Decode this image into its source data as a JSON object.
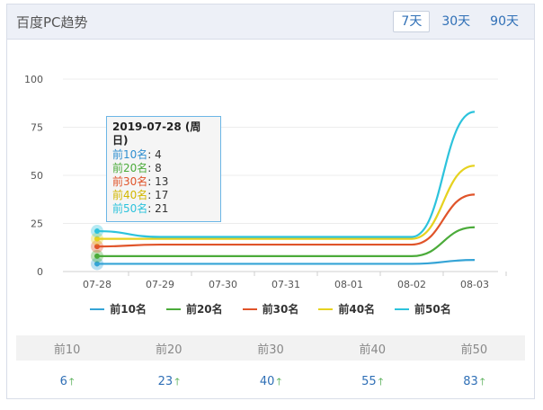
{
  "header": {
    "title": "百度PC趋势",
    "tabs": [
      {
        "label": "7天",
        "active": true
      },
      {
        "label": "30天",
        "active": false
      },
      {
        "label": "90天",
        "active": false
      }
    ]
  },
  "chart_data": {
    "type": "line",
    "categories": [
      "07-28",
      "07-29",
      "07-30",
      "07-31",
      "08-01",
      "08-02",
      "08-03"
    ],
    "yticks": [
      0,
      25,
      50,
      75,
      100
    ],
    "ylim": [
      0,
      100
    ],
    "grid": true,
    "legend_position": "bottom",
    "series": [
      {
        "name": "前10名",
        "color": "#35a4d6",
        "values": [
          4,
          4,
          4,
          4,
          4,
          4,
          6
        ]
      },
      {
        "name": "前20名",
        "color": "#4bab3a",
        "values": [
          8,
          8,
          8,
          8,
          8,
          8,
          23
        ]
      },
      {
        "name": "前30名",
        "color": "#e0542a",
        "values": [
          13,
          14,
          14,
          14,
          14,
          14,
          40
        ]
      },
      {
        "name": "前40名",
        "color": "#e6d21f",
        "values": [
          17,
          17,
          17,
          17,
          17,
          17,
          55
        ]
      },
      {
        "name": "前50名",
        "color": "#2dc3dc",
        "values": [
          21,
          18,
          18,
          18,
          18,
          18,
          83
        ]
      }
    ]
  },
  "tooltip": {
    "title": "2019-07-28 (周日)",
    "rows": [
      {
        "label": "前10名",
        "value": "4",
        "color": "#2f8fd0"
      },
      {
        "label": "前20名",
        "value": "8",
        "color": "#4bab3a"
      },
      {
        "label": "前30名",
        "value": "13",
        "color": "#e0542a"
      },
      {
        "label": "前40名",
        "value": "17",
        "color": "#d2b700"
      },
      {
        "label": "前50名",
        "value": "21",
        "color": "#2dc3dc"
      }
    ]
  },
  "stats": {
    "headers": [
      "前10",
      "前20",
      "前30",
      "前40",
      "前50"
    ],
    "values": [
      "6",
      "23",
      "40",
      "55",
      "83"
    ],
    "trend_icon": "up-arrow-icon"
  }
}
